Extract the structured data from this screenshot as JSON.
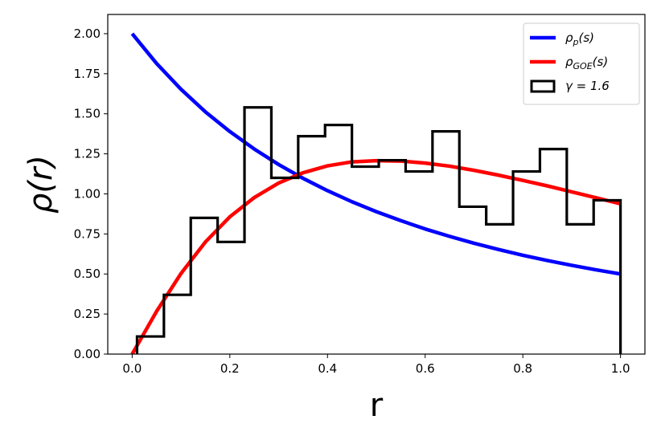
{
  "chart_data": {
    "type": "line",
    "xlabel": "r",
    "ylabel": "ρ(r)",
    "xlim": [
      -0.05,
      1.05
    ],
    "ylim": [
      0.0,
      2.12
    ],
    "xticks": [
      0.0,
      0.2,
      0.4,
      0.6,
      0.8,
      1.0
    ],
    "xtick_labels": [
      "0.0",
      "0.2",
      "0.4",
      "0.6",
      "0.8",
      "1.0"
    ],
    "yticks": [
      0.0,
      0.25,
      0.5,
      0.75,
      1.0,
      1.25,
      1.5,
      1.75,
      2.0
    ],
    "ytick_labels": [
      "0.00",
      "0.25",
      "0.50",
      "0.75",
      "1.00",
      "1.25",
      "1.50",
      "1.75",
      "2.00"
    ],
    "grid": false,
    "legend_position": "top-right",
    "series": [
      {
        "name": "ρ_p(s)",
        "legend_base": "ρ",
        "legend_sub": "p",
        "legend_tail": "(s)",
        "kind": "line",
        "color": "#0000ff",
        "x": [
          0.0,
          0.05,
          0.1,
          0.15,
          0.2,
          0.25,
          0.3,
          0.35,
          0.4,
          0.45,
          0.5,
          0.55,
          0.6,
          0.65,
          0.7,
          0.75,
          0.8,
          0.85,
          0.9,
          0.95,
          1.0
        ],
        "y": [
          2.0,
          1.814,
          1.653,
          1.512,
          1.389,
          1.28,
          1.183,
          1.097,
          1.02,
          0.951,
          0.889,
          0.833,
          0.781,
          0.735,
          0.692,
          0.653,
          0.617,
          0.584,
          0.554,
          0.526,
          0.5
        ]
      },
      {
        "name": "ρ_GOE(s)",
        "legend_base": "ρ",
        "legend_sub": "GOE",
        "legend_tail": "(s)",
        "kind": "line",
        "color": "#ff0000",
        "x": [
          0.0,
          0.05,
          0.1,
          0.15,
          0.2,
          0.25,
          0.3,
          0.35,
          0.4,
          0.45,
          0.5,
          0.55,
          0.6,
          0.65,
          0.7,
          0.75,
          0.8,
          0.85,
          0.9,
          0.95,
          1.0
        ],
        "y": [
          0.0,
          0.267,
          0.503,
          0.7,
          0.857,
          0.977,
          1.068,
          1.132,
          1.175,
          1.2,
          1.207,
          1.205,
          1.192,
          1.173,
          1.147,
          1.117,
          1.084,
          1.05,
          1.013,
          0.976,
          0.938
        ]
      },
      {
        "name": "γ = 1.6",
        "legend_base": "γ = 1.6",
        "legend_sub": "",
        "legend_tail": "",
        "kind": "step-histogram",
        "color": "#000000",
        "bin_edges": [
          0.01,
          0.065,
          0.12,
          0.175,
          0.23,
          0.285,
          0.34,
          0.395,
          0.45,
          0.505,
          0.56,
          0.615,
          0.67,
          0.725,
          0.78,
          0.835,
          0.89,
          0.945,
          1.0
        ],
        "values": [
          0.11,
          0.37,
          0.85,
          0.7,
          1.54,
          1.1,
          1.36,
          1.43,
          1.17,
          1.21,
          1.14,
          1.39,
          0.92,
          0.81,
          1.14,
          1.28,
          0.81,
          0.96
        ]
      }
    ]
  }
}
